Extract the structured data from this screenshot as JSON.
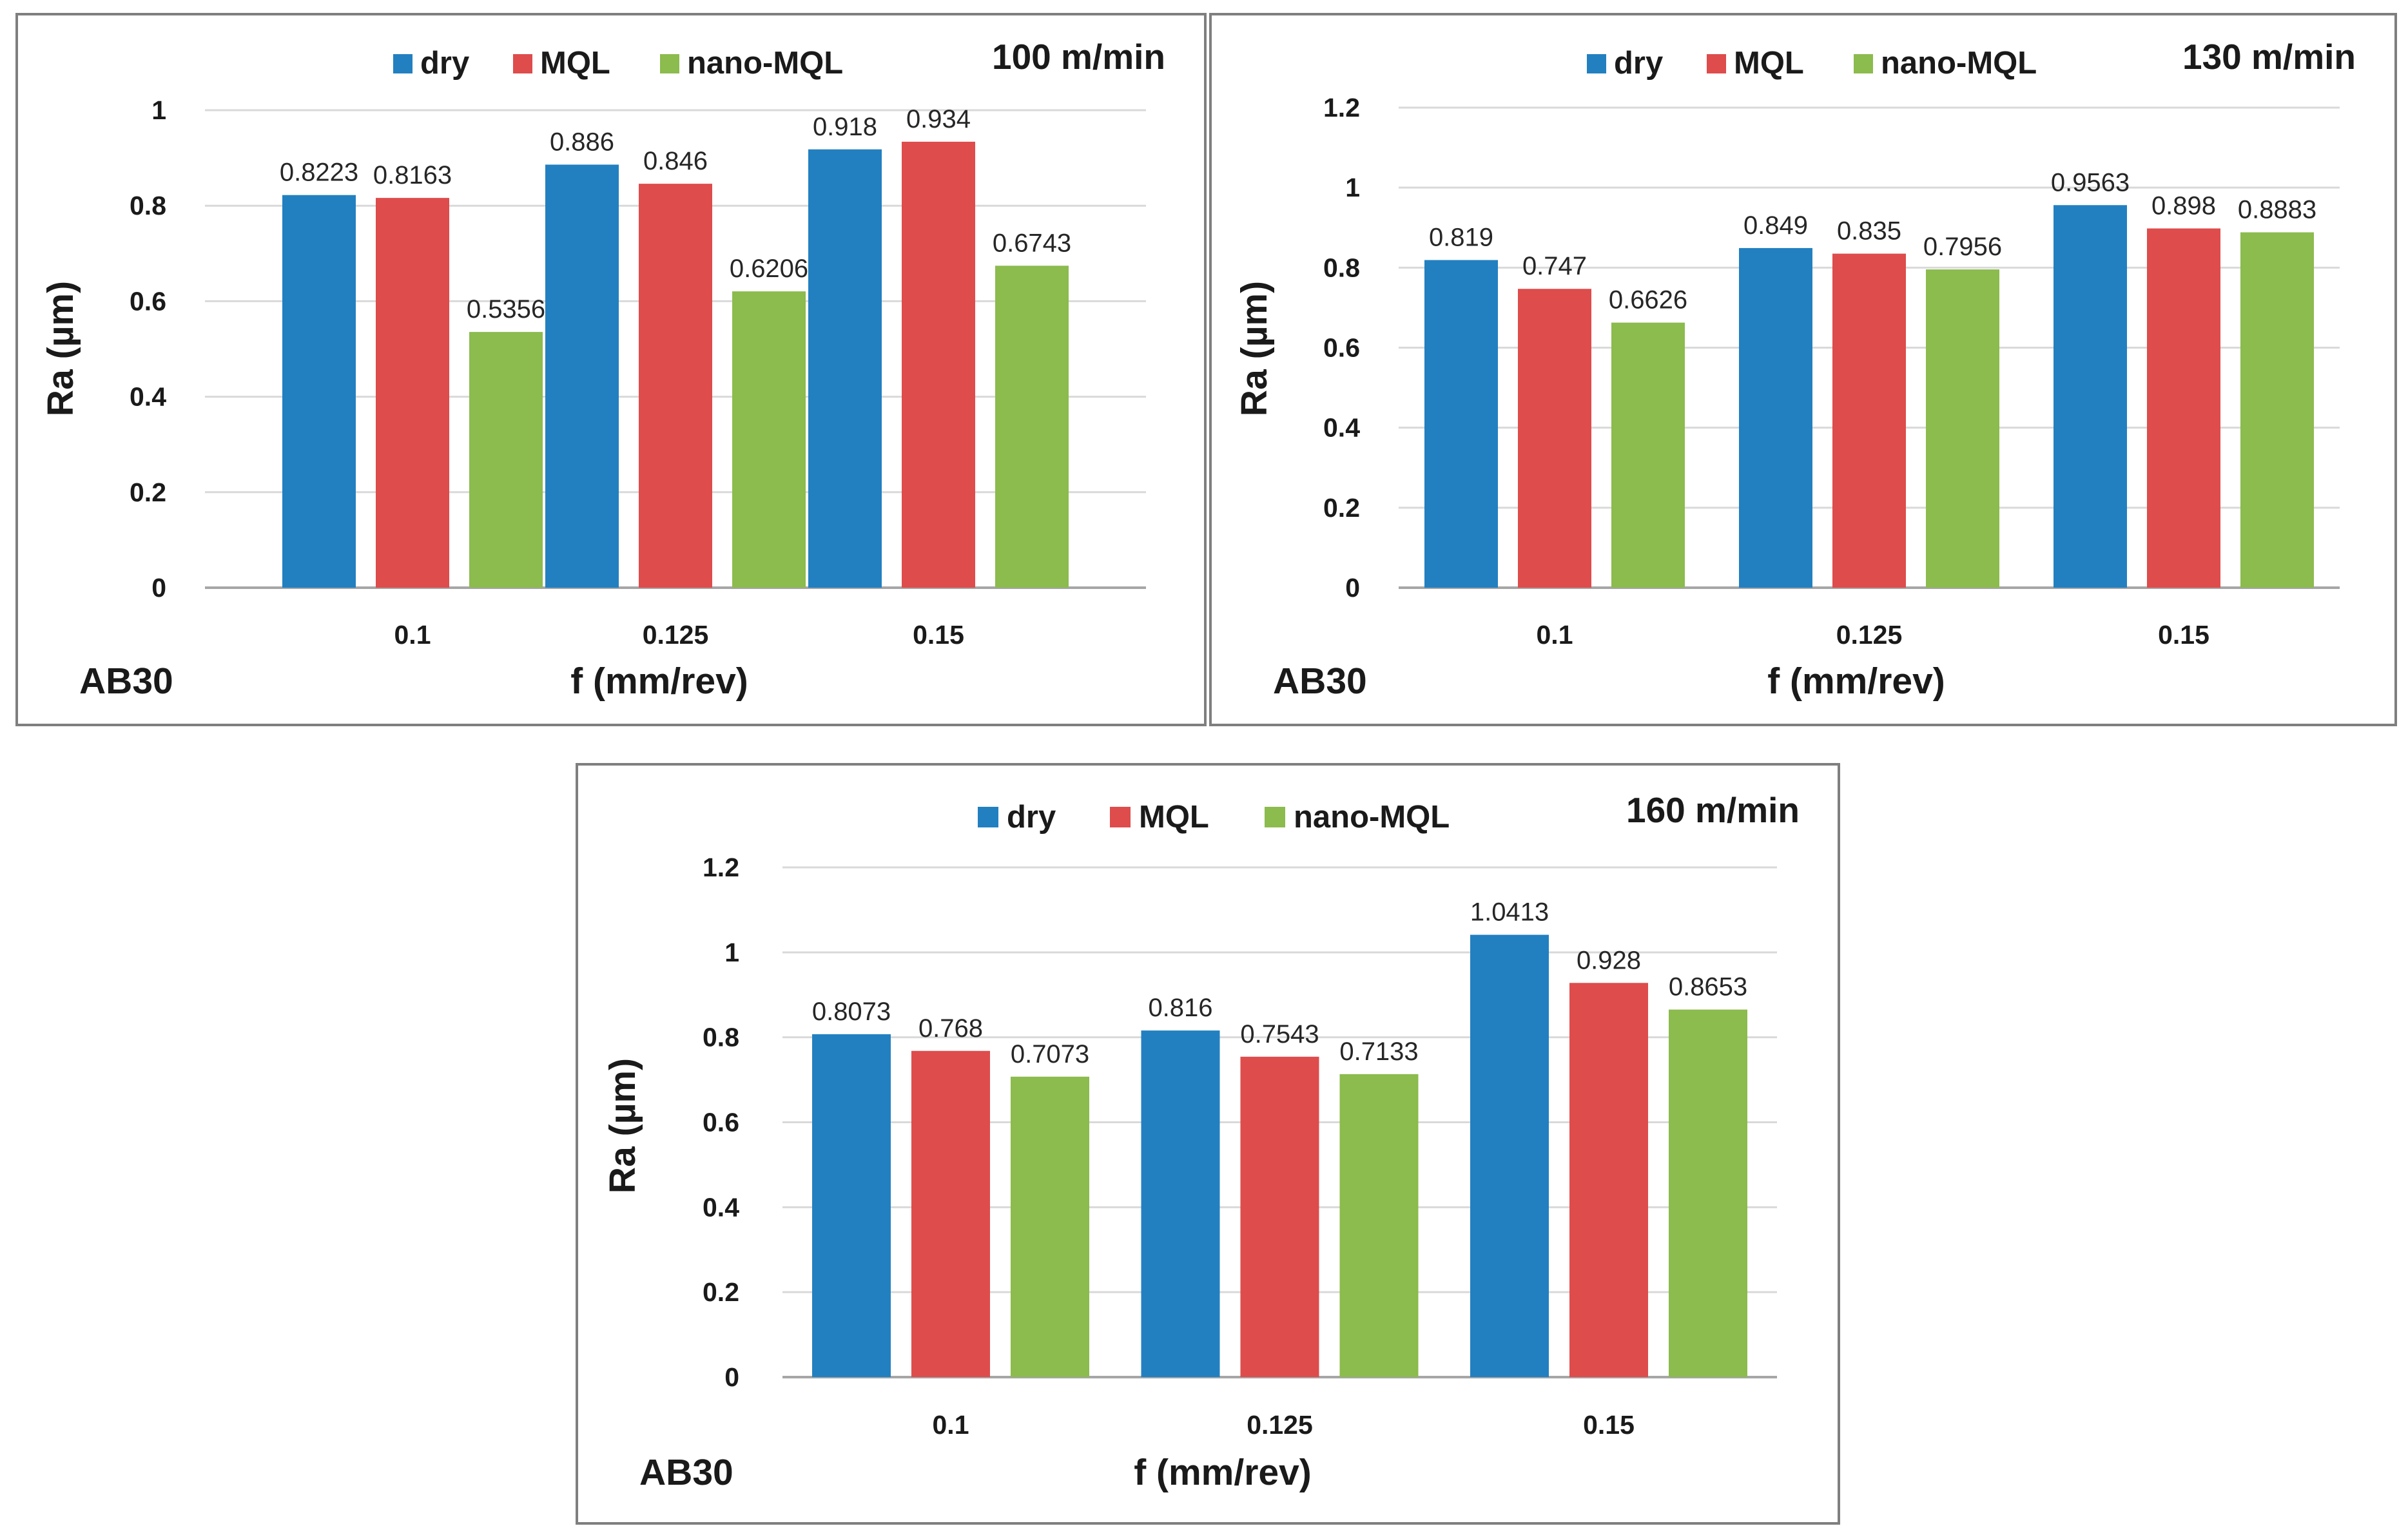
{
  "legend": {
    "labels": [
      "dry",
      "MQL",
      "nano-MQL"
    ],
    "colors": [
      "#2280c0",
      "#de4c4c",
      "#8cbb4e"
    ]
  },
  "chart_data": [
    {
      "type": "bar",
      "title": "100 m/min",
      "material": "AB30",
      "xlabel": "f (mm/rev)",
      "ylabel": "Ra (µm)",
      "categories": [
        "0.1",
        "0.125",
        "0.15"
      ],
      "yticks": [
        "0",
        "0.2",
        "0.4",
        "0.6",
        "0.8",
        "1"
      ],
      "ylim": [
        0,
        1
      ],
      "grid": true,
      "legend_position": "top",
      "series": [
        {
          "name": "dry",
          "values": [
            0.8223,
            0.886,
            0.918
          ],
          "labels": [
            "0.8223",
            "0.886",
            "0.918"
          ]
        },
        {
          "name": "MQL",
          "values": [
            0.8163,
            0.846,
            0.934
          ],
          "labels": [
            "0.8163",
            "0.846",
            "0.934"
          ]
        },
        {
          "name": "nano-MQL",
          "values": [
            0.5356,
            0.6206,
            0.6743
          ],
          "labels": [
            "0.5356",
            "0.6206",
            "0.6743"
          ]
        }
      ]
    },
    {
      "type": "bar",
      "title": "130 m/min",
      "material": "AB30",
      "xlabel": "f (mm/rev)",
      "ylabel": "Ra (µm)",
      "categories": [
        "0.1",
        "0.125",
        "0.15"
      ],
      "yticks": [
        "0",
        "0.2",
        "0.4",
        "0.6",
        "0.8",
        "1",
        "1.2"
      ],
      "ylim": [
        0,
        1.2
      ],
      "grid": true,
      "legend_position": "top",
      "series": [
        {
          "name": "dry",
          "values": [
            0.819,
            0.849,
            0.9563
          ],
          "labels": [
            "0.819",
            "0.849",
            "0.9563"
          ]
        },
        {
          "name": "MQL",
          "values": [
            0.747,
            0.835,
            0.898
          ],
          "labels": [
            "0.747",
            "0.835",
            "0.898"
          ]
        },
        {
          "name": "nano-MQL",
          "values": [
            0.6626,
            0.7956,
            0.8883
          ],
          "labels": [
            "0.6626",
            "0.7956",
            "0.8883"
          ]
        }
      ]
    },
    {
      "type": "bar",
      "title": "160 m/min",
      "material": "AB30",
      "xlabel": "f (mm/rev)",
      "ylabel": "Ra (µm)",
      "categories": [
        "0.1",
        "0.125",
        "0.15"
      ],
      "yticks": [
        "0",
        "0.2",
        "0.4",
        "0.6",
        "0.8",
        "1",
        "1.2"
      ],
      "ylim": [
        0,
        1.2
      ],
      "grid": true,
      "legend_position": "top",
      "series": [
        {
          "name": "dry",
          "values": [
            0.8073,
            0.816,
            1.0413
          ],
          "labels": [
            "0.8073",
            "0.816",
            "1.0413"
          ]
        },
        {
          "name": "MQL",
          "values": [
            0.768,
            0.7543,
            0.928
          ],
          "labels": [
            "0.768",
            "0.7543",
            "0.928"
          ]
        },
        {
          "name": "nano-MQL",
          "values": [
            0.7073,
            0.7133,
            0.8653
          ],
          "labels": [
            "0.7073",
            "0.7133",
            "0.8653"
          ]
        }
      ]
    }
  ]
}
